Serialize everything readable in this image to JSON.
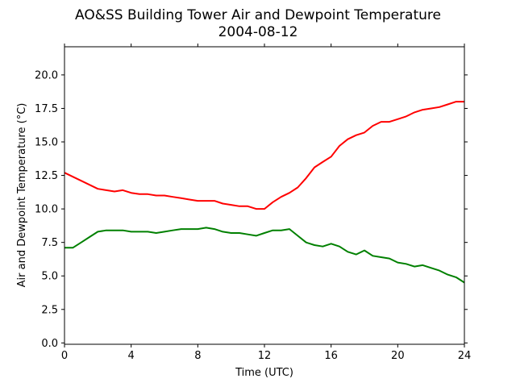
{
  "chart_data": {
    "type": "line",
    "title": "AO&SS Building Tower Air and Dewpoint Temperature",
    "subtitle": "2004-08-12",
    "xlabel": "Time (UTC)",
    "ylabel": "Air and Dewpoint Temperature (°C)",
    "xlim": [
      0,
      24
    ],
    "ylim": [
      -0.1,
      22.1
    ],
    "xticks": [
      0,
      4,
      8,
      12,
      16,
      20,
      24
    ],
    "xtick_labels": [
      "0",
      "4",
      "8",
      "12",
      "16",
      "20",
      "24"
    ],
    "yticks": [
      0,
      2.5,
      5,
      7.5,
      10,
      12.5,
      15,
      17.5,
      20
    ],
    "ytick_labels": [
      "0.0",
      "2.5",
      "5.0",
      "7.5",
      "10.0",
      "12.5",
      "15.0",
      "17.5",
      "20.0"
    ],
    "grid": false,
    "series": [
      {
        "color": "#ff0000",
        "x": [
          0,
          0.5,
          1,
          1.5,
          2,
          2.5,
          3,
          3.5,
          4,
          4.5,
          5,
          5.5,
          6,
          6.5,
          7,
          7.5,
          8,
          8.5,
          9,
          9.5,
          10,
          10.5,
          11,
          11.5,
          12,
          12.5,
          13,
          13.5,
          14,
          14.5,
          15,
          15.5,
          16,
          16.5,
          17,
          17.5,
          18,
          18.5,
          19,
          19.5,
          20,
          20.5,
          21,
          21.5,
          22,
          22.5,
          23,
          23.5,
          24
        ],
        "values": [
          12.7,
          12.4,
          12.1,
          11.8,
          11.5,
          11.4,
          11.3,
          11.4,
          11.2,
          11.1,
          11.1,
          11.0,
          11.0,
          10.9,
          10.8,
          10.7,
          10.6,
          10.6,
          10.6,
          10.4,
          10.3,
          10.2,
          10.2,
          10.0,
          10.0,
          10.5,
          10.9,
          11.2,
          11.6,
          12.3,
          13.1,
          13.5,
          13.9,
          14.7,
          15.2,
          15.5,
          15.7,
          16.2,
          16.5,
          16.5,
          16.7,
          16.9,
          17.2,
          17.4,
          17.5,
          17.6,
          17.8,
          18.0,
          18.0
        ]
      },
      {
        "color": "#008000",
        "x": [
          0,
          0.5,
          1,
          1.5,
          2,
          2.5,
          3,
          3.5,
          4,
          4.5,
          5,
          5.5,
          6,
          6.5,
          7,
          7.5,
          8,
          8.5,
          9,
          9.5,
          10,
          10.5,
          11,
          11.5,
          12,
          12.5,
          13,
          13.5,
          14,
          14.5,
          15,
          15.5,
          16,
          16.5,
          17,
          17.5,
          18,
          18.5,
          19,
          19.5,
          20,
          20.5,
          21,
          21.5,
          22,
          22.5,
          23,
          23.5,
          24
        ],
        "values": [
          7.1,
          7.1,
          7.5,
          7.9,
          8.3,
          8.4,
          8.4,
          8.4,
          8.3,
          8.3,
          8.3,
          8.2,
          8.3,
          8.4,
          8.5,
          8.5,
          8.5,
          8.6,
          8.5,
          8.3,
          8.2,
          8.2,
          8.1,
          8.0,
          8.2,
          8.4,
          8.4,
          8.5,
          8.0,
          7.5,
          7.3,
          7.2,
          7.4,
          7.2,
          6.8,
          6.6,
          6.9,
          6.5,
          6.4,
          6.3,
          6.0,
          5.9,
          5.7,
          5.8,
          5.6,
          5.4,
          5.1,
          4.9,
          4.5
        ]
      }
    ]
  }
}
